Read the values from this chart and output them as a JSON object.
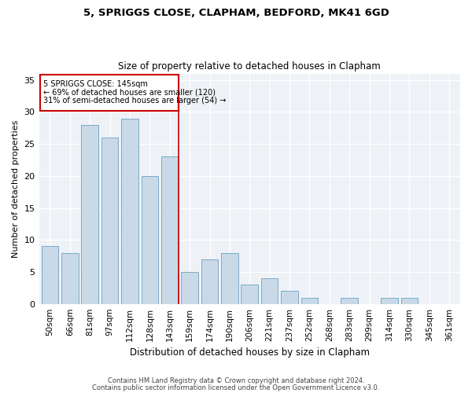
{
  "title_line1": "5, SPRIGGS CLOSE, CLAPHAM, BEDFORD, MK41 6GD",
  "title_line2": "Size of property relative to detached houses in Clapham",
  "xlabel": "Distribution of detached houses by size in Clapham",
  "ylabel": "Number of detached properties",
  "bar_values": [
    9,
    8,
    28,
    26,
    29,
    20,
    23,
    5,
    7,
    8,
    3,
    4,
    2,
    1,
    0,
    1,
    0,
    1,
    1,
    0,
    0
  ],
  "categories": [
    "50sqm",
    "66sqm",
    "81sqm",
    "97sqm",
    "112sqm",
    "128sqm",
    "143sqm",
    "159sqm",
    "174sqm",
    "190sqm",
    "206sqm",
    "221sqm",
    "237sqm",
    "252sqm",
    "268sqm",
    "283sqm",
    "299sqm",
    "314sqm",
    "330sqm",
    "345sqm",
    "361sqm"
  ],
  "bar_color": "#c9d9e8",
  "bar_edge_color": "#7aaac8",
  "background_color": "#eef2f7",
  "annotation_box_color": "#ffffff",
  "annotation_border_color": "#cc0000",
  "vline_color": "#cc0000",
  "vline_position": 6,
  "annotation_text_line1": "5 SPRIGGS CLOSE: 145sqm",
  "annotation_text_line2": "← 69% of detached houses are smaller (120)",
  "annotation_text_line3": "31% of semi-detached houses are larger (54) →",
  "ylim": [
    0,
    36
  ],
  "yticks": [
    0,
    5,
    10,
    15,
    20,
    25,
    30,
    35
  ],
  "footnote1": "Contains HM Land Registry data © Crown copyright and database right 2024.",
  "footnote2": "Contains public sector information licensed under the Open Government Licence v3.0."
}
